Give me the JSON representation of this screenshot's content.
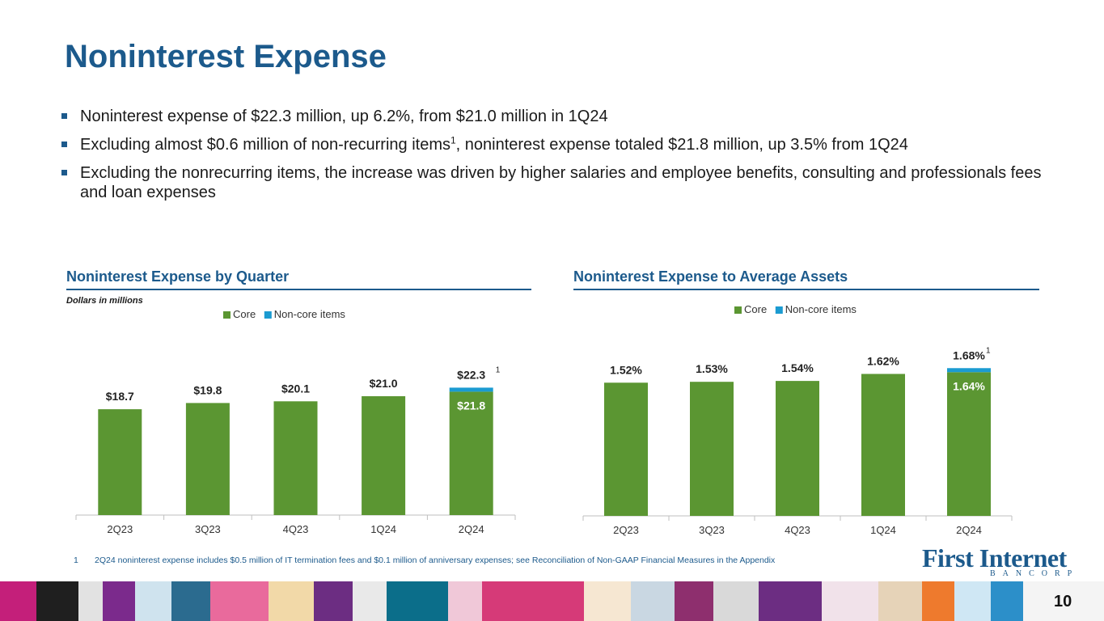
{
  "title": "Noninterest Expense",
  "bullets": [
    {
      "text": "Noninterest expense of $22.3 million, up 6.2%, from $21.0 million in 1Q24",
      "sup": ""
    },
    {
      "text": "Excluding almost $0.6 million of non-recurring items",
      "sup": "1",
      "after": ", noninterest expense totaled $21.8 million, up 3.5% from 1Q24"
    },
    {
      "text": "Excluding the nonrecurring items, the increase was driven by higher salaries and employee benefits, consulting and professionals fees and loan expenses",
      "sup": ""
    }
  ],
  "left_panel": {
    "title": "Noninterest Expense by Quarter",
    "units": "Dollars in millions"
  },
  "right_panel": {
    "title": "Noninterest Expense to Average Assets"
  },
  "footnote": {
    "number": "1",
    "text": "2Q24 noninterest expense includes $0.5 million of IT termination fees and $0.1 million of anniversary expenses; see Reconciliation of Non-GAAP Financial Measures in the Appendix"
  },
  "logo": {
    "name": "First Internet",
    "sub": "BANCORP"
  },
  "page_number": "10",
  "colors": {
    "core": "#5b9632",
    "noncore": "#1b9bd1",
    "brand": "#1c5a8c"
  },
  "chart_data": [
    {
      "type": "bar",
      "stacked": true,
      "categories": [
        "2Q23",
        "3Q23",
        "4Q23",
        "1Q24",
        "2Q24"
      ],
      "series": [
        {
          "name": "Core",
          "values": [
            18.7,
            19.8,
            20.1,
            21.0,
            21.8
          ]
        },
        {
          "name": "Non-core items",
          "values": [
            0,
            0,
            0,
            0,
            0.5
          ]
        }
      ],
      "total_labels": [
        "$18.7",
        "$19.8",
        "$20.1",
        "$21.0",
        "$22.3"
      ],
      "inner_labels": [
        "",
        "",
        "",
        "",
        "$21.8"
      ],
      "footnote_marker_index": 4,
      "footnote_marker": "1",
      "ylim": [
        0,
        30
      ],
      "legend": "top",
      "grid": false
    },
    {
      "type": "bar",
      "stacked": true,
      "categories": [
        "2Q23",
        "3Q23",
        "4Q23",
        "1Q24",
        "2Q24"
      ],
      "series": [
        {
          "name": "Core",
          "values": [
            1.52,
            1.53,
            1.54,
            1.62,
            1.64
          ]
        },
        {
          "name": "Non-core items",
          "values": [
            0,
            0,
            0,
            0,
            0.04
          ]
        }
      ],
      "total_labels": [
        "1.52%",
        "1.53%",
        "1.54%",
        "1.62%",
        "1.68%"
      ],
      "inner_labels": [
        "",
        "",
        "",
        "",
        "1.64%"
      ],
      "footnote_marker_index": 4,
      "footnote_marker": "1",
      "ylim": [
        0,
        2.15
      ],
      "legend": "top",
      "grid": false
    }
  ]
}
